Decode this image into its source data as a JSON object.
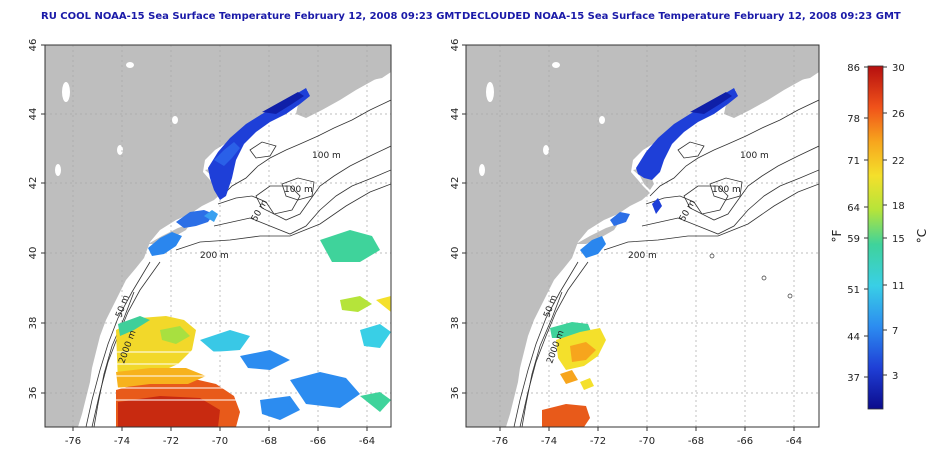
{
  "titles": {
    "left": "RU COOL NOAA-15 Sea Surface Temperature February 12, 2008 09:23 GMT",
    "right": "DECLOUDED NOAA-15 Sea Surface Temperature February 12, 2008 09:23 GMT"
  },
  "axes": {
    "lon_ticks": [
      "-76",
      "-74",
      "-72",
      "-70",
      "-68",
      "-66",
      "-64"
    ],
    "lat_ticks": [
      "46",
      "44",
      "42",
      "40",
      "38",
      "36"
    ]
  },
  "contour_labels": {
    "left": [
      "100 m",
      "100 m",
      "50 m",
      "200 m",
      "50 m",
      "2000 m"
    ],
    "right": [
      "100 m",
      "100 m",
      "50 m",
      "200 m",
      "50 m",
      "2000 m"
    ]
  },
  "colorbar": {
    "f_ticks": [
      "86",
      "78",
      "71",
      "64",
      "59",
      "51",
      "44",
      "37"
    ],
    "c_ticks": [
      "30",
      "26",
      "22",
      "18",
      "15",
      "11",
      "7",
      "3"
    ],
    "f_unit": "°F",
    "c_unit": "°C",
    "colors": [
      "#0b0b8c",
      "#1f3fd6",
      "#2c8cf0",
      "#39cfe6",
      "#3fd39b",
      "#b5e43a",
      "#f4e02b",
      "#f7a51d",
      "#f0521a",
      "#b50f0f"
    ]
  }
}
